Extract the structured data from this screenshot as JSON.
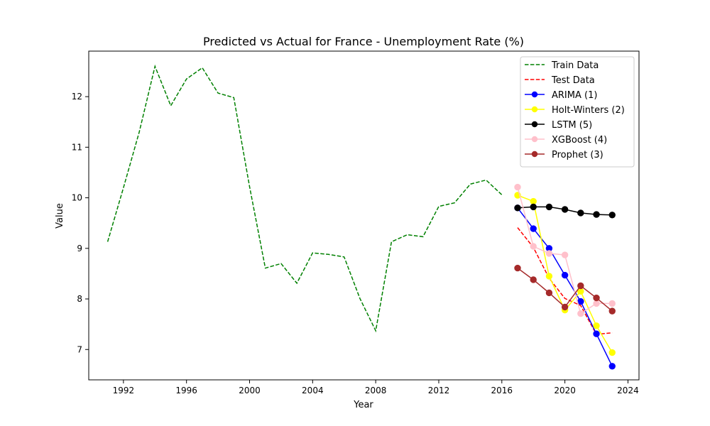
{
  "chart_data": {
    "type": "line",
    "title": "Predicted vs Actual for France - Unemployment Rate (%)",
    "xlabel": "Year",
    "ylabel": "Value",
    "xlim": [
      1989.8,
      2024.7
    ],
    "ylim": [
      6.4,
      12.9
    ],
    "x_ticks": [
      1992,
      1996,
      2000,
      2004,
      2008,
      2012,
      2016,
      2020,
      2024
    ],
    "y_ticks": [
      7,
      8,
      9,
      10,
      11,
      12
    ],
    "legend_position": "top-right",
    "series": [
      {
        "name": "Train Data",
        "style": "dashed",
        "color": "#008000",
        "marker": "none",
        "x": [
          1991,
          1992,
          1993,
          1994,
          1995,
          1996,
          1997,
          1998,
          1999,
          2000,
          2001,
          2002,
          2003,
          2004,
          2005,
          2006,
          2007,
          2008,
          2009,
          2010,
          2011,
          2012,
          2013,
          2014,
          2015,
          2016
        ],
        "values": [
          9.13,
          10.2,
          11.3,
          12.6,
          11.82,
          12.35,
          12.57,
          12.07,
          11.98,
          10.22,
          8.61,
          8.7,
          8.31,
          8.91,
          8.88,
          8.83,
          8.01,
          7.37,
          9.13,
          9.27,
          9.23,
          9.83,
          9.9,
          10.27,
          10.35,
          10.06
        ]
      },
      {
        "name": "Test Data",
        "style": "dashed",
        "color": "#ff0000",
        "marker": "none",
        "x": [
          2017,
          2018,
          2019,
          2020,
          2021,
          2022,
          2023
        ],
        "values": [
          9.41,
          9.02,
          8.41,
          8.01,
          7.87,
          7.3,
          7.33
        ]
      },
      {
        "name": "ARIMA (1)",
        "style": "solid",
        "color": "#0000ff",
        "marker": "circle",
        "x": [
          2017,
          2018,
          2019,
          2020,
          2021,
          2022,
          2023
        ],
        "values": [
          9.8,
          9.39,
          9.0,
          8.47,
          7.95,
          7.31,
          6.67
        ]
      },
      {
        "name": "Holt-Winters (2)",
        "style": "solid",
        "color": "#ffff00",
        "marker": "circle",
        "x": [
          2017,
          2018,
          2019,
          2020,
          2021,
          2022,
          2023
        ],
        "values": [
          10.05,
          9.93,
          8.45,
          7.78,
          8.15,
          7.47,
          6.94
        ]
      },
      {
        "name": "LSTM (5)",
        "style": "solid",
        "color": "#000000",
        "marker": "circle",
        "x": [
          2017,
          2018,
          2019,
          2020,
          2021,
          2022,
          2023
        ],
        "values": [
          9.8,
          9.82,
          9.82,
          9.77,
          9.7,
          9.67,
          9.66
        ]
      },
      {
        "name": "XGBoost (4)",
        "style": "solid",
        "color": "#ffc0cb",
        "marker": "circle",
        "x": [
          2017,
          2018,
          2019,
          2020,
          2021,
          2022,
          2023
        ],
        "values": [
          10.21,
          9.04,
          8.9,
          8.87,
          7.71,
          7.91,
          7.91
        ]
      },
      {
        "name": "Prophet (3)",
        "style": "solid",
        "color": "#a52a2a",
        "marker": "circle",
        "x": [
          2017,
          2018,
          2019,
          2020,
          2021,
          2022,
          2023
        ],
        "values": [
          8.61,
          8.38,
          8.12,
          7.84,
          8.26,
          8.02,
          7.76
        ]
      }
    ]
  }
}
